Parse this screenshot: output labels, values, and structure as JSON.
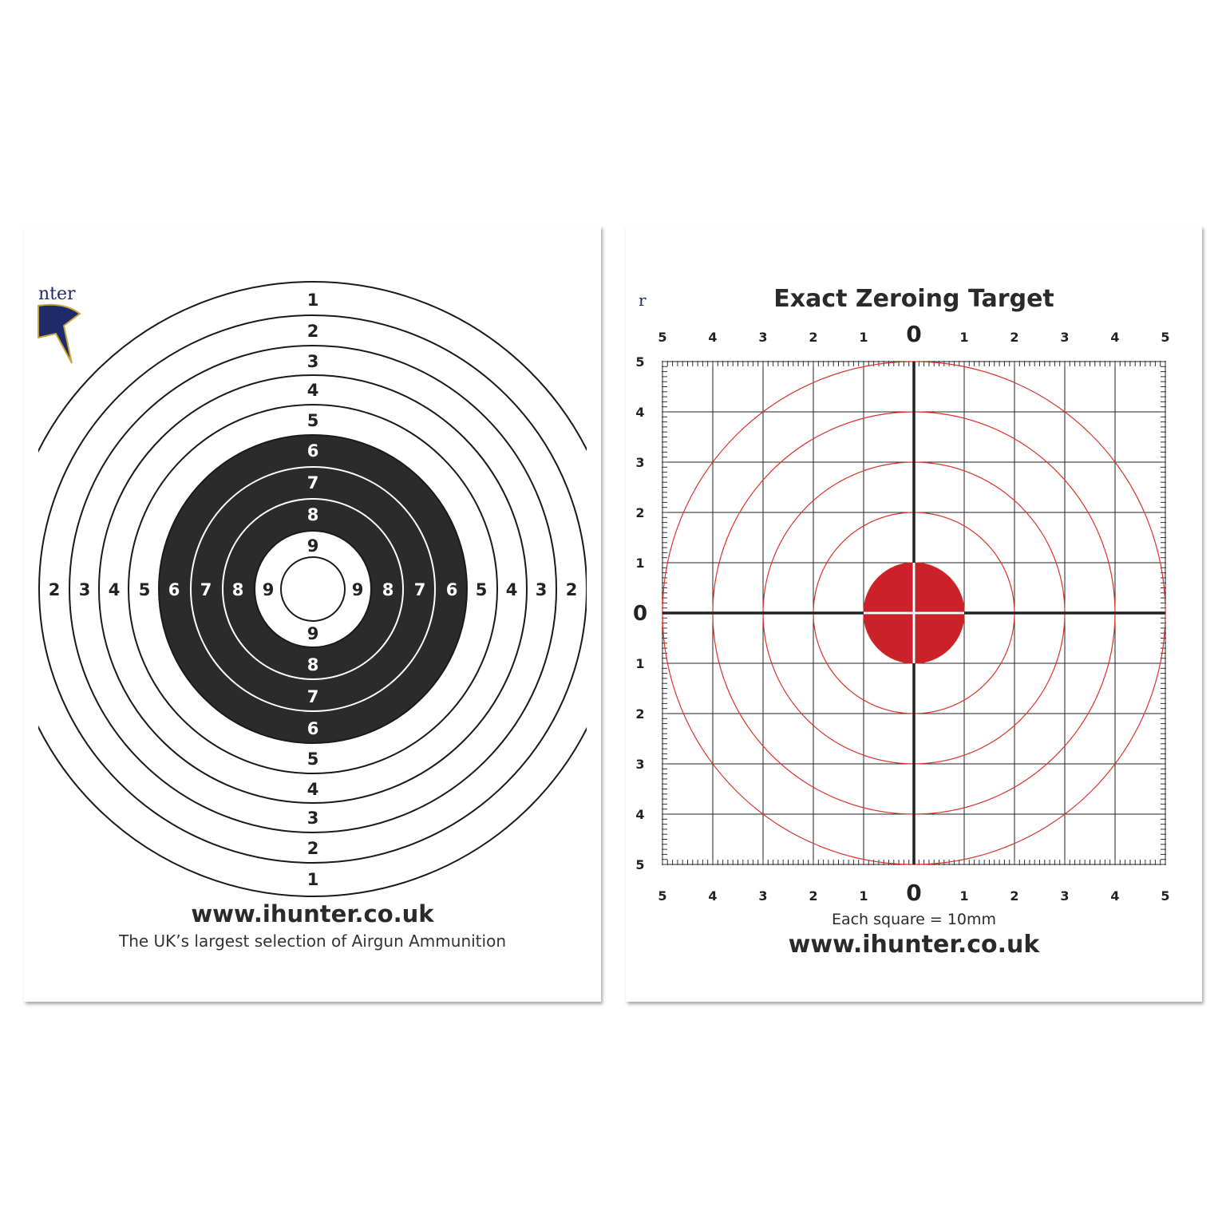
{
  "left_target": {
    "logo_text": "iHunter",
    "ring_labels_vertical": [
      "1",
      "2",
      "3",
      "4",
      "5",
      "6",
      "7",
      "8",
      "9"
    ],
    "ring_labels_horizontal": [
      "2",
      "3",
      "4",
      "5",
      "6",
      "7",
      "8",
      "9"
    ],
    "url": "www.ihunter.co.uk",
    "tagline": "The UK’s largest selection of Airgun Ammunition",
    "colors": {
      "black": "#2b2b2b",
      "ring_line": "#1a1a1a"
    }
  },
  "right_target": {
    "logo_text": "iHunter",
    "title": "Exact Zeroing Target",
    "axis_labels": [
      "5",
      "4",
      "3",
      "2",
      "1",
      "0",
      "1",
      "2",
      "3",
      "4",
      "5"
    ],
    "note": "Each square = 10mm",
    "url": "www.ihunter.co.uk",
    "colors": {
      "circle": "#d9342b",
      "center_fill": "#cc2128",
      "grid": "#222222"
    }
  }
}
